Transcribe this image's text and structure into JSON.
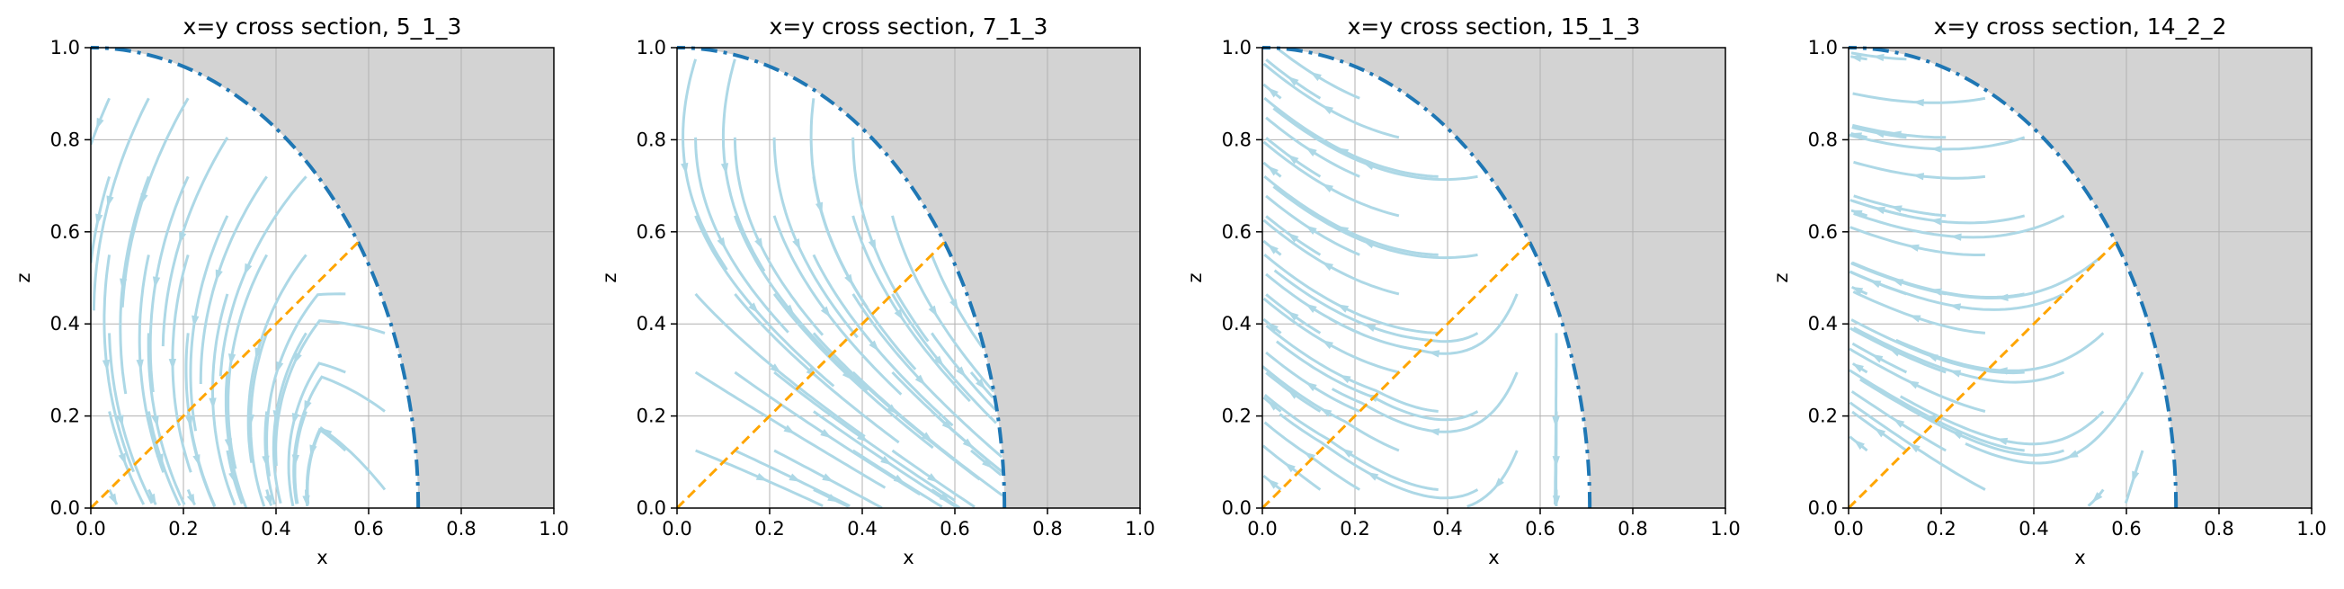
{
  "chart_data": [
    {
      "type": "streamplot",
      "title": "x=y cross section, 5_1_3",
      "xlabel": "x",
      "ylabel": "z",
      "xlim": [
        0,
        1
      ],
      "ylim": [
        0,
        1
      ],
      "xticks": [
        "0.0",
        "0.2",
        "0.4",
        "0.6",
        "0.8",
        "1.0"
      ],
      "yticks": [
        "0.0",
        "0.2",
        "0.4",
        "0.6",
        "0.8",
        "1.0"
      ],
      "grid": true,
      "boundary_radius": 0.7071,
      "diagonal_end": [
        0.577,
        0.577
      ]
    },
    {
      "type": "streamplot",
      "title": "x=y cross section, 7_1_3",
      "xlabel": "x",
      "ylabel": "z",
      "xlim": [
        0,
        1
      ],
      "ylim": [
        0,
        1
      ],
      "xticks": [
        "0.0",
        "0.2",
        "0.4",
        "0.6",
        "0.8",
        "1.0"
      ],
      "yticks": [
        "0.0",
        "0.2",
        "0.4",
        "0.6",
        "0.8",
        "1.0"
      ],
      "grid": true,
      "boundary_radius": 0.7071,
      "diagonal_end": [
        0.577,
        0.577
      ]
    },
    {
      "type": "streamplot",
      "title": "x=y cross section, 15_1_3",
      "xlabel": "x",
      "ylabel": "z",
      "xlim": [
        0,
        1
      ],
      "ylim": [
        0,
        1
      ],
      "xticks": [
        "0.0",
        "0.2",
        "0.4",
        "0.6",
        "0.8",
        "1.0"
      ],
      "yticks": [
        "0.0",
        "0.2",
        "0.4",
        "0.6",
        "0.8",
        "1.0"
      ],
      "grid": true,
      "boundary_radius": 0.7071,
      "diagonal_end": [
        0.577,
        0.577
      ]
    },
    {
      "type": "streamplot",
      "title": "x=y cross section, 14_2_2",
      "xlabel": "x",
      "ylabel": "z",
      "xlim": [
        0,
        1
      ],
      "ylim": [
        0,
        1
      ],
      "xticks": [
        "0.0",
        "0.2",
        "0.4",
        "0.6",
        "0.8",
        "1.0"
      ],
      "yticks": [
        "0.0",
        "0.2",
        "0.4",
        "0.6",
        "0.8",
        "1.0"
      ],
      "grid": true,
      "boundary_radius": 0.7071,
      "diagonal_end": [
        0.577,
        0.577
      ]
    }
  ],
  "colors": {
    "outside_region": "#d3d3d3",
    "streamlines": "#add8e6",
    "boundary": "#1f77b4",
    "diagonal": "#ffa500",
    "grid": "#b0b0b0"
  }
}
